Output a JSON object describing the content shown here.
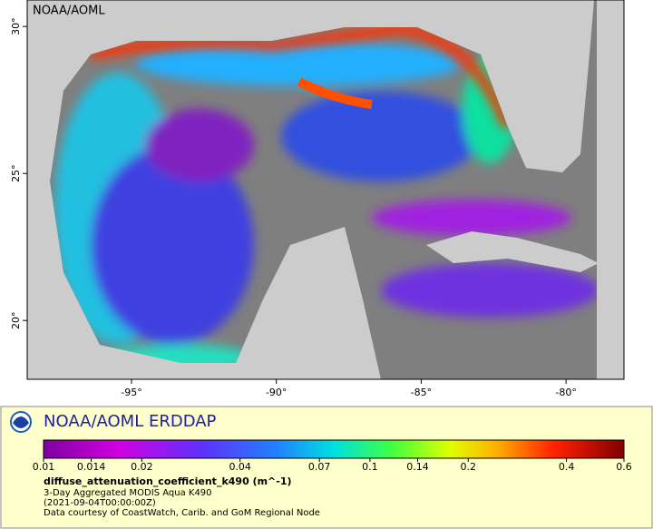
{
  "header": {
    "corner_label": "NOAA/AOML"
  },
  "map": {
    "xlim": [
      -98.6,
      -78.0
    ],
    "ylim": [
      18.0,
      30.9
    ],
    "xticks": [
      {
        "value": -95,
        "label": "-95°"
      },
      {
        "value": -90,
        "label": "-90°"
      },
      {
        "value": -85,
        "label": "-85°"
      },
      {
        "value": -80,
        "label": "-80°"
      }
    ],
    "yticks": [
      {
        "value": 20,
        "label": "20°"
      },
      {
        "value": 25,
        "label": "25°"
      },
      {
        "value": 30,
        "label": "30°"
      }
    ]
  },
  "legend": {
    "title": "NOAA/AOML ERDDAP",
    "colorbar": {
      "scale": "log",
      "lim": [
        0.01,
        0.6
      ],
      "ticks": [
        0.01,
        0.014,
        0.02,
        0.04,
        0.07,
        0.1,
        0.14,
        0.2,
        0.4,
        0.6
      ]
    },
    "variable": "diffuse_attenuation_coefficient_k490 (m^-1)",
    "lines": [
      "3-Day Aggregated MODIS Aqua K490",
      "(2021-09-04T00:00:00Z)",
      "Data courtesy of CoastWatch, Carib. and GoM Regional Node"
    ]
  }
}
